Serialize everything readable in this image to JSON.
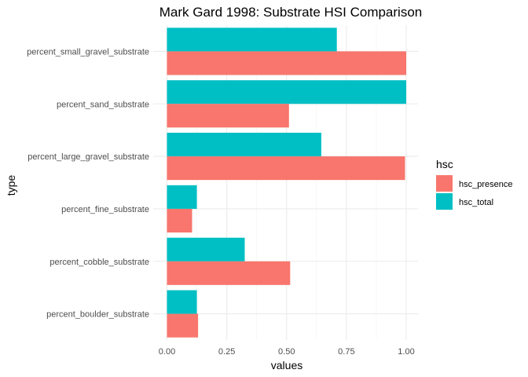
{
  "chart_data": {
    "type": "bar",
    "orientation": "horizontal",
    "title": "Mark Gard 1998: Substrate HSI Comparison",
    "xlabel": "values",
    "ylabel": "type",
    "xlim": [
      0,
      1.0
    ],
    "xticks": [
      "0.00",
      "0.25",
      "0.50",
      "0.75",
      "1.00"
    ],
    "xtick_values": [
      0,
      0.25,
      0.5,
      0.75,
      1.0
    ],
    "grid": true,
    "legend": {
      "title": "hsc",
      "position": "right"
    },
    "categories": [
      "percent_small_gravel_substrate",
      "percent_sand_substrate",
      "percent_large_gravel_substrate",
      "percent_fine_substrate",
      "percent_cobble_substrate",
      "percent_boulder_substrate"
    ],
    "series": [
      {
        "name": "hsc_presence",
        "color": "#F8766D",
        "values": [
          1.0,
          0.51,
          0.995,
          0.105,
          0.515,
          0.13
        ]
      },
      {
        "name": "hsc_total",
        "color": "#00BFC4",
        "values": [
          0.71,
          1.0,
          0.645,
          0.125,
          0.325,
          0.125
        ]
      }
    ]
  }
}
